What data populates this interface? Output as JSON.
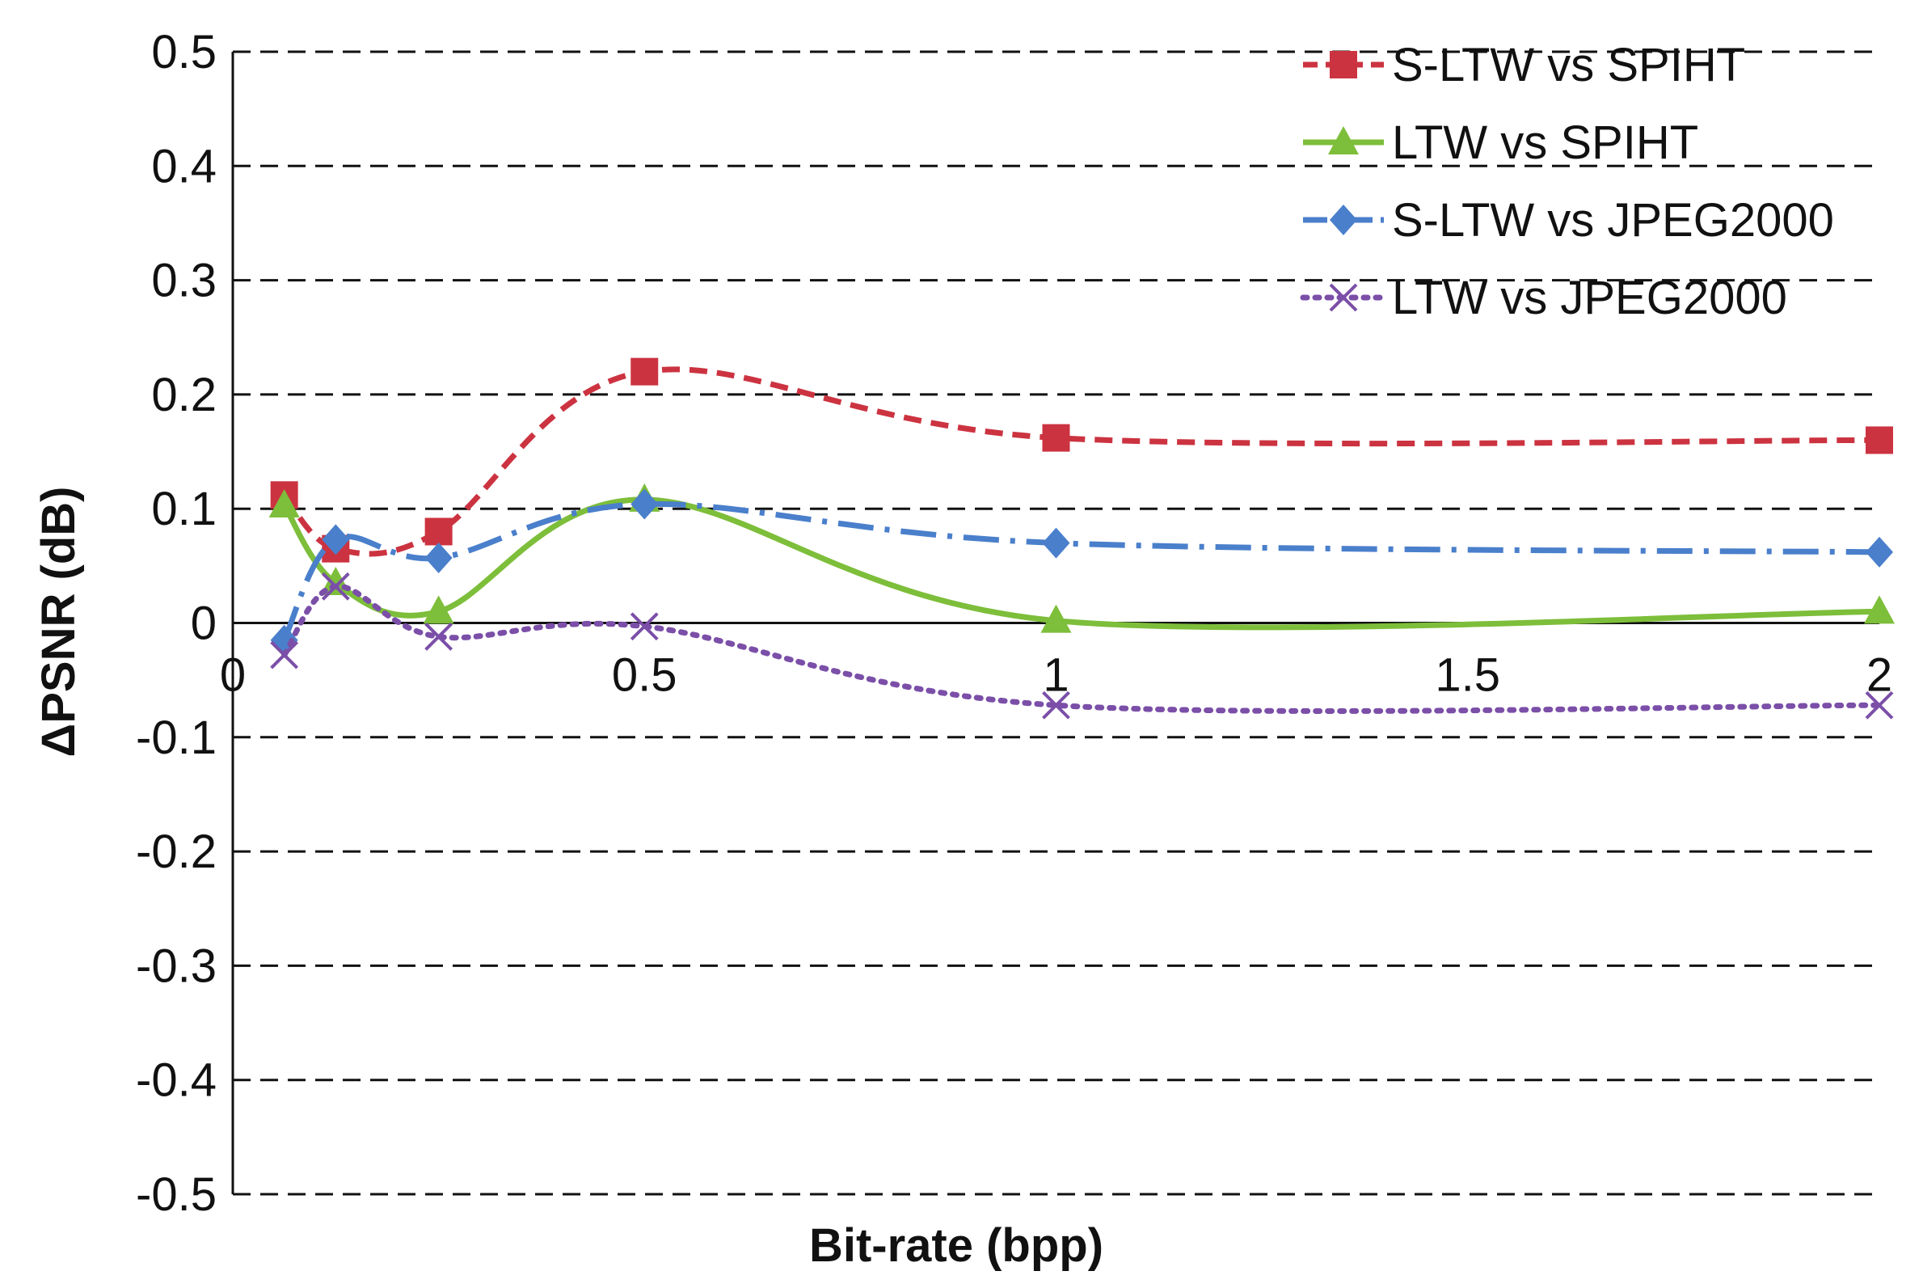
{
  "chart_data": {
    "type": "line",
    "title": "",
    "xlabel": "Bit-rate (bpp)",
    "ylabel": "ΔPSNR (dB)",
    "xlim": [
      0,
      2
    ],
    "ylim": [
      -0.5,
      0.5
    ],
    "x_ticks": [
      0,
      0.5,
      1,
      1.5,
      2
    ],
    "x_tick_labels": [
      "0",
      "0.5",
      "1",
      "1.5",
      "2"
    ],
    "y_ticks": [
      0.5,
      0.4,
      0.3,
      0.2,
      0.1,
      0,
      -0.1,
      -0.2,
      -0.3,
      -0.4,
      -0.5
    ],
    "y_tick_labels": [
      "0.5",
      "0.4",
      "0.3",
      "0.2",
      "0.1",
      "0",
      "-0.1",
      "-0.2",
      "-0.3",
      "-0.4",
      "-0.5"
    ],
    "grid": "horizontal dashed",
    "legend_position": "top-right",
    "x": [
      0.0625,
      0.125,
      0.25,
      0.5,
      1,
      2
    ],
    "series": [
      {
        "name": "S-LTW vs SPIHT",
        "values": [
          0.112,
          0.065,
          0.08,
          0.22,
          0.162,
          0.16
        ],
        "color": "#CC3340",
        "marker": "square",
        "dash": "dashed"
      },
      {
        "name": "LTW vs SPIHT",
        "values": [
          0.103,
          0.035,
          0.01,
          0.108,
          0.002,
          0.01
        ],
        "color": "#7DBE3A",
        "marker": "triangle",
        "dash": "solid"
      },
      {
        "name": "S-LTW vs JPEG2000",
        "values": [
          -0.015,
          0.073,
          0.057,
          0.104,
          0.07,
          0.062
        ],
        "color": "#4A7FCB",
        "marker": "diamond",
        "dash": "dashdot"
      },
      {
        "name": "LTW vs JPEG2000",
        "values": [
          -0.028,
          0.032,
          -0.012,
          -0.003,
          -0.072,
          -0.072
        ],
        "color": "#7B4FA8",
        "marker": "x",
        "dash": "dotted"
      }
    ]
  }
}
